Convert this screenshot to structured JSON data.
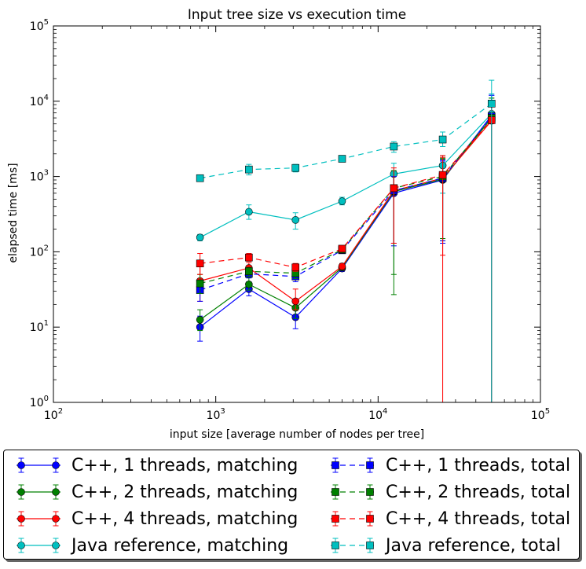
{
  "chart_data": {
    "type": "line",
    "title": "Input tree size vs execution time",
    "xlabel": "input size [average number of nodes per tree]",
    "ylabel": "elapsed time [ms]",
    "xscale": "log",
    "yscale": "log",
    "xlim": [
      100,
      100000
    ],
    "ylim": [
      1,
      100000
    ],
    "xticks": [
      {
        "value": 100,
        "base": "10",
        "exp": "2"
      },
      {
        "value": 1000,
        "base": "10",
        "exp": "3"
      },
      {
        "value": 10000,
        "base": "10",
        "exp": "4"
      },
      {
        "value": 100000,
        "base": "10",
        "exp": "5"
      }
    ],
    "yticks": [
      {
        "value": 1,
        "base": "10",
        "exp": "0"
      },
      {
        "value": 10,
        "base": "10",
        "exp": "1"
      },
      {
        "value": 100,
        "base": "10",
        "exp": "2"
      },
      {
        "value": 1000,
        "base": "10",
        "exp": "3"
      },
      {
        "value": 10000,
        "base": "10",
        "exp": "4"
      },
      {
        "value": 100000,
        "base": "10",
        "exp": "5"
      }
    ],
    "x": [
      800,
      1600,
      3100,
      6000,
      12500,
      25000,
      50000
    ],
    "legend_position": "below plot, two columns",
    "series": [
      {
        "name": "C++, 1 threads, matching",
        "color": "#0000ff",
        "marker": "circle",
        "dash": "solid",
        "values": [
          10,
          32,
          13.5,
          60,
          600,
          900,
          6500
        ],
        "err_low": [
          6.5,
          26,
          9.5,
          55,
          120,
          130,
          1
        ],
        "err_high": [
          14,
          40,
          17,
          66,
          1000,
          1600,
          12000
        ]
      },
      {
        "name": "C++, 2 threads, matching",
        "color": "#008000",
        "marker": "circle",
        "dash": "solid",
        "values": [
          12.5,
          37,
          18,
          62,
          630,
          920,
          6000
        ],
        "err_low": [
          9,
          31,
          13,
          57,
          27,
          140,
          1
        ],
        "err_high": [
          17,
          45,
          23,
          68,
          1100,
          1700,
          11000
        ]
      },
      {
        "name": "C++, 4 threads, matching",
        "color": "#ff0000",
        "marker": "circle",
        "dash": "solid",
        "values": [
          41,
          61,
          22,
          64,
          650,
          950,
          5500
        ],
        "err_low": [
          22,
          48,
          17,
          58,
          130,
          1,
          1
        ],
        "err_high": [
          70,
          72,
          32,
          70,
          1200,
          1800,
          10000
        ]
      },
      {
        "name": "Java reference, matching",
        "color": "#00bfbf",
        "marker": "circle",
        "dash": "solid",
        "values": [
          155,
          340,
          265,
          470,
          1080,
          1400,
          6800
        ],
        "err_low": [
          140,
          270,
          200,
          420,
          600,
          600,
          1
        ],
        "err_high": [
          170,
          420,
          330,
          530,
          1500,
          1900,
          12500
        ]
      },
      {
        "name": "C++, 1 threads, total",
        "color": "#0000ff",
        "marker": "square",
        "dash": "dashed",
        "values": [
          31,
          51,
          47,
          105,
          650,
          950,
          6300
        ],
        "err_low": [
          22,
          45,
          40,
          95,
          130,
          140,
          1
        ],
        "err_high": [
          42,
          58,
          55,
          115,
          1000,
          1650,
          12000
        ]
      },
      {
        "name": "C++, 2 threads, total",
        "color": "#008000",
        "marker": "square",
        "dash": "dashed",
        "values": [
          38,
          55,
          52,
          107,
          700,
          1000,
          6000
        ],
        "err_low": [
          28,
          47,
          44,
          97,
          50,
          150,
          1
        ],
        "err_high": [
          50,
          62,
          60,
          117,
          1200,
          1750,
          11000
        ]
      },
      {
        "name": "C++, 4 threads, total",
        "color": "#ff0000",
        "marker": "square",
        "dash": "dashed",
        "values": [
          70,
          84,
          62,
          110,
          700,
          1050,
          5600
        ],
        "err_low": [
          50,
          75,
          55,
          100,
          130,
          90,
          1
        ],
        "err_high": [
          95,
          95,
          70,
          120,
          1300,
          1900,
          10000
        ]
      },
      {
        "name": "Java reference, total",
        "color": "#00bfbf",
        "marker": "square",
        "dash": "dashed",
        "values": [
          950,
          1240,
          1300,
          1720,
          2500,
          3100,
          9300
        ],
        "err_low": [
          900,
          1050,
          1150,
          1650,
          2100,
          2500,
          1
        ],
        "err_high": [
          1000,
          1450,
          1450,
          1800,
          2900,
          3900,
          19000
        ]
      }
    ]
  }
}
